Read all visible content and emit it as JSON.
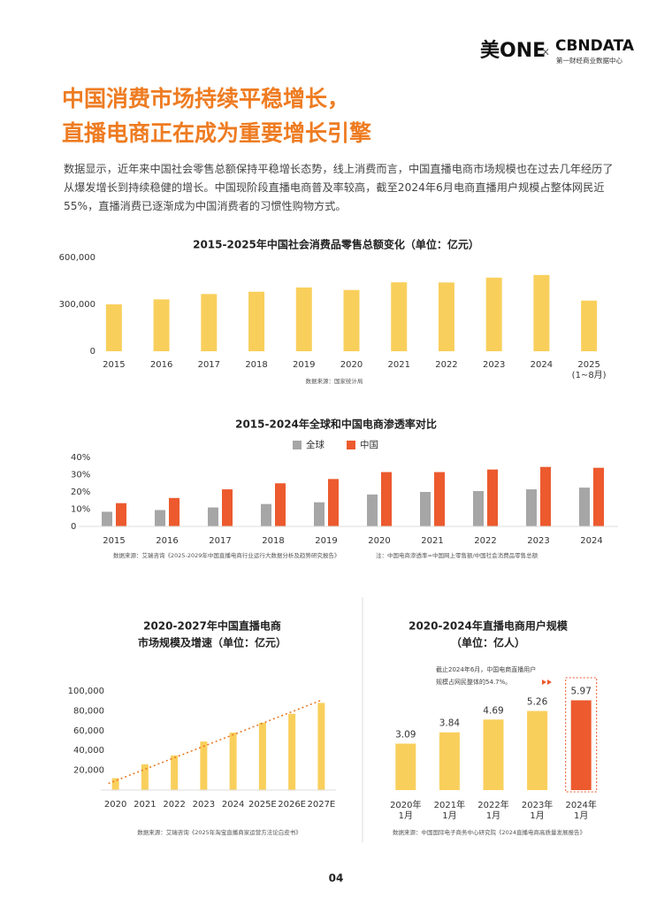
{
  "header": {
    "logo_left": "美ONE",
    "separator": "×",
    "logo_right": "CBNDATA",
    "logo_right_sub": "第一财经商业数据中心"
  },
  "title": [
    "中国消费市场持续平稳增长，",
    "直播电商正在成为重要增长引擎"
  ],
  "paragraph": "数据显示，近年来中国社会零售总额保持平稳增长态势，线上消费而言，中国直播电商市场规模也在过去几年经历了从爆发增长到持续稳健的增长。中国现阶段直播电商普及率较高，截至2024年6月电商直播用户规模占整体网民近55%，直播消费已逐渐成为中国消费者的习惯性购物方式。",
  "chart_data": [
    {
      "type": "bar",
      "title": [
        "2015-2025年中国社会消费品零售总额变化（单位：亿元）"
      ],
      "categories": [
        "2015",
        "2016",
        "2017",
        "2018",
        "2019",
        "2020",
        "2021",
        "2022",
        "2023",
        "2024",
        "2025\n(1~8月)"
      ],
      "values": [
        300000,
        332000,
        366000,
        381000,
        408000,
        392000,
        441000,
        440000,
        471000,
        488000,
        324000
      ],
      "color": "#f9cf5c",
      "ylim": [
        0,
        600000
      ],
      "yticks": [
        0,
        {
          "value": 300000,
          "label": "300,000"
        },
        {
          "value": 600000,
          "label": "600,000"
        }
      ],
      "source": "数据来源：国家统计局"
    },
    {
      "type": "grouped_bar",
      "title": [
        "2015-2024年全球和中国电商渗透率对比"
      ],
      "categories": [
        "2015",
        "2016",
        "2017",
        "2018",
        "2019",
        "2020",
        "2021",
        "2022",
        "2023",
        "2024"
      ],
      "series": [
        {
          "name": "全球",
          "color": "#a6a6a6",
          "values": [
            8.5,
            9.5,
            11,
            13,
            14,
            18.5,
            20,
            20.5,
            21.5,
            22.5
          ]
        },
        {
          "name": "中国",
          "color": "#ec5a2e",
          "values": [
            13.5,
            16.5,
            21.5,
            25,
            27.5,
            31.5,
            31.5,
            33,
            34.5,
            34
          ]
        }
      ],
      "ylim": [
        0,
        40
      ],
      "yticks": [
        0,
        {
          "value": 10,
          "label": "10%"
        },
        {
          "value": 20,
          "label": "20%"
        },
        {
          "value": 30,
          "label": "30%"
        },
        {
          "value": 40,
          "label": "40%"
        }
      ],
      "legend": "top",
      "source": "数据来源：艾瑞咨询《2025-2029年中国直播电商行业运行大数据分析及趋势研究报告》",
      "note": "注：中国电商渗透率=中国网上零售额/中国社会消费品零售总额"
    },
    {
      "type": "bar_trend",
      "title": [
        "2020-2027年中国直播电商",
        "市场规模及增速（单位：亿元）"
      ],
      "categories": [
        "2020",
        "2021",
        "2022",
        "2023",
        "2024",
        "2025E",
        "2026E",
        "2027E"
      ],
      "values": [
        12000,
        26000,
        35000,
        49000,
        58000,
        68000,
        77000,
        88000
      ],
      "color": "#f9cf5c",
      "trend_color": "#e8731e",
      "ylim": [
        0,
        100000
      ],
      "yticks": [
        {
          "value": 0,
          "label": "-"
        },
        {
          "value": 20000,
          "label": "20,000"
        },
        {
          "value": 40000,
          "label": "40,000"
        },
        {
          "value": 60000,
          "label": "60,000"
        },
        {
          "value": 80000,
          "label": "80,000"
        },
        {
          "value": 100000,
          "label": "100,000"
        }
      ],
      "source": "数据来源：艾瑞咨询《2025年淘宝直播商家运营方法论白皮书》"
    },
    {
      "type": "bar",
      "title": [
        "2020-2024年直播电商用户规模",
        "（单位：亿人）"
      ],
      "categories": [
        "2020年\n1月",
        "2021年\n1月",
        "2022年\n1月",
        "2023年\n1月",
        "2024年\n1月"
      ],
      "values": [
        3.09,
        3.84,
        4.69,
        5.26,
        5.97
      ],
      "colors": [
        "#f9cf5c",
        "#f9cf5c",
        "#f9cf5c",
        "#f9cf5c",
        "#ec5a2e"
      ],
      "data_labels": true,
      "annotation": [
        "截止2024年6月，中国电商直播用户",
        "规模占网民整体的54.7%。"
      ],
      "source": "数据来源：中国国际电子商务中心研究院《2024直播电商高质量发展报告》"
    }
  ],
  "page_number": "04"
}
